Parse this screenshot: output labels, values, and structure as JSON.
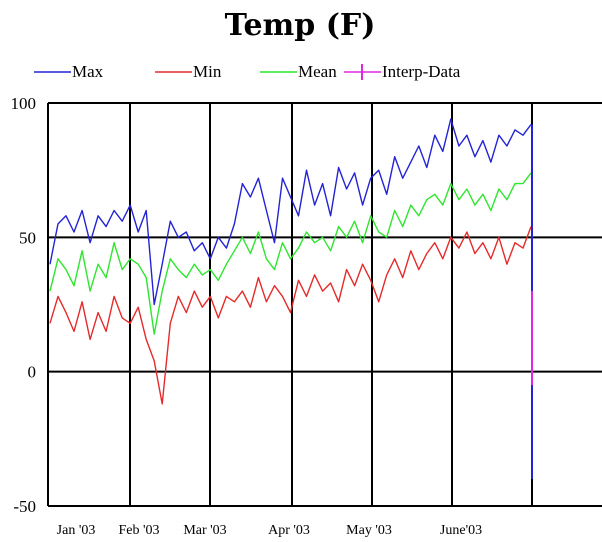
{
  "chart_data": {
    "type": "line",
    "title": "Temp (F)",
    "xlabel": "",
    "ylabel": "",
    "ylim": [
      -50,
      100
    ],
    "yticks": [
      100,
      50,
      0,
      -50
    ],
    "x_ticks": [
      "Jan '03",
      "Feb '03",
      "Mar '03",
      "Apr '03",
      "May '03",
      "June'03"
    ],
    "grid": true,
    "legend_position": "top",
    "series": [
      {
        "name": "Max",
        "color": "#2323d6",
        "values": [
          40,
          55,
          58,
          52,
          60,
          48,
          58,
          54,
          60,
          56,
          62,
          52,
          60,
          25,
          40,
          56,
          50,
          52,
          45,
          48,
          42,
          50,
          46,
          55,
          70,
          65,
          72,
          60,
          48,
          72,
          65,
          58,
          75,
          62,
          70,
          58,
          76,
          68,
          74,
          62,
          72,
          75,
          66,
          80,
          72,
          78,
          84,
          76,
          88,
          82,
          94,
          84,
          88,
          80,
          86,
          78,
          88,
          84,
          90,
          88,
          92
        ]
      },
      {
        "name": "Min",
        "color": "#e62a2a",
        "values": [
          18,
          28,
          22,
          15,
          26,
          12,
          22,
          15,
          28,
          20,
          18,
          24,
          12,
          4,
          -12,
          18,
          28,
          22,
          30,
          24,
          28,
          20,
          28,
          26,
          30,
          24,
          35,
          26,
          32,
          28,
          22,
          34,
          28,
          36,
          30,
          33,
          26,
          38,
          32,
          40,
          34,
          26,
          36,
          42,
          35,
          45,
          38,
          44,
          48,
          42,
          50,
          46,
          52,
          44,
          48,
          42,
          50,
          40,
          48,
          46,
          54
        ]
      },
      {
        "name": "Mean",
        "color": "#2ee62e",
        "values": [
          30,
          42,
          38,
          32,
          45,
          30,
          40,
          35,
          48,
          38,
          42,
          40,
          35,
          14,
          30,
          42,
          38,
          35,
          40,
          36,
          38,
          34,
          40,
          45,
          50,
          44,
          52,
          42,
          38,
          48,
          42,
          46,
          52,
          48,
          50,
          45,
          54,
          50,
          56,
          48,
          58,
          52,
          50,
          60,
          54,
          62,
          58,
          64,
          66,
          62,
          70,
          64,
          68,
          62,
          66,
          60,
          68,
          64,
          70,
          70,
          74
        ]
      },
      {
        "name": "Interp-Data",
        "color": "#e028e0",
        "values": []
      }
    ]
  }
}
